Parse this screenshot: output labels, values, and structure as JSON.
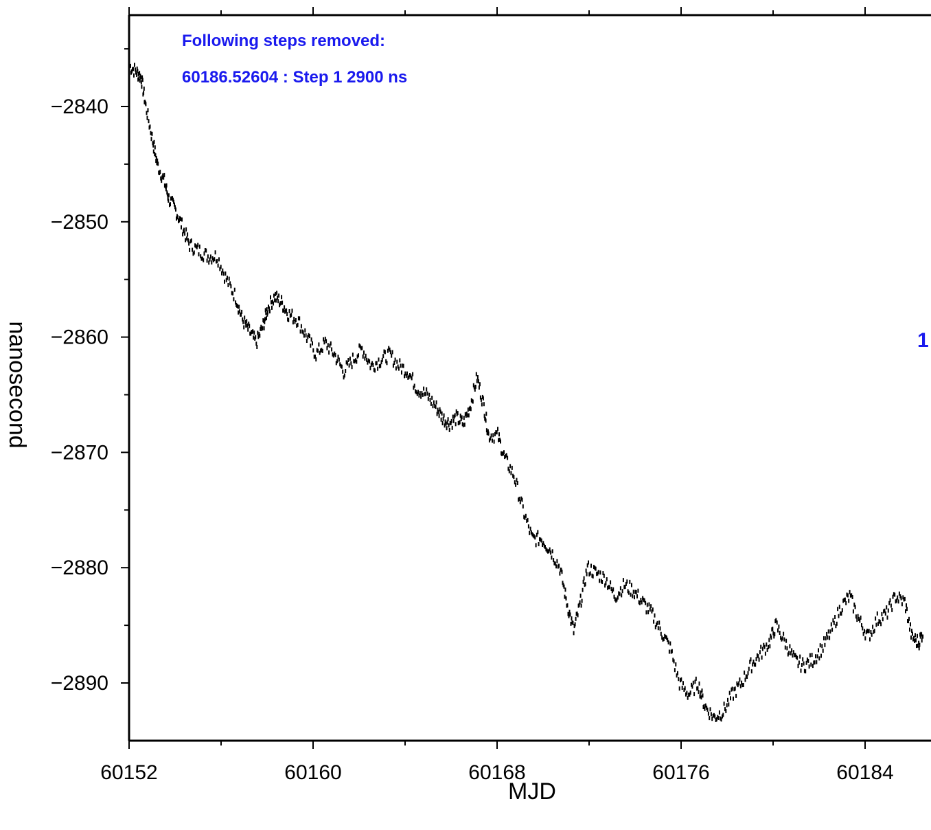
{
  "chart_data": {
    "type": "scatter",
    "xlabel": "MJD",
    "ylabel": "nanosecond",
    "xlim": [
      60152,
      60187
    ],
    "ylim": [
      -2895,
      -2832
    ],
    "x_ticks": [
      {
        "value": 60152,
        "label": "60152"
      },
      {
        "value": 60160,
        "label": "60160"
      },
      {
        "value": 60168,
        "label": "60168"
      },
      {
        "value": 60176,
        "label": "60176"
      },
      {
        "value": 60184,
        "label": "60184"
      }
    ],
    "x_minor_ticks": [
      60156,
      60164,
      60172,
      60180
    ],
    "y_ticks": [
      {
        "value": -2840,
        "label": "−2840"
      },
      {
        "value": -2850,
        "label": "−2850"
      },
      {
        "value": -2860,
        "label": "−2860"
      },
      {
        "value": -2870,
        "label": "−2870"
      },
      {
        "value": -2880,
        "label": "−2880"
      },
      {
        "value": -2890,
        "label": "−2890"
      }
    ],
    "y_minor_ticks": [
      -2835,
      -2845,
      -2855,
      -2865,
      -2875,
      -2885,
      -2895
    ],
    "annotations": [
      "Following steps removed:",
      "60186.52604 : Step 1 2900 ns"
    ],
    "side_label": "1",
    "marker_color": "#000000",
    "annotation_color": "#1a1aee",
    "series": [
      {
        "points": [
          [
            60152.0,
            -2836.5
          ],
          [
            60152.3,
            -2837.0
          ],
          [
            60152.5,
            -2837.5
          ],
          [
            60152.7,
            -2840.0
          ],
          [
            60153.0,
            -2843.0
          ],
          [
            60153.2,
            -2845.0
          ],
          [
            60153.5,
            -2846.5
          ],
          [
            60153.7,
            -2848.0
          ],
          [
            60154.0,
            -2849.0
          ],
          [
            60154.3,
            -2850.5
          ],
          [
            60154.6,
            -2852.0
          ],
          [
            60155.0,
            -2852.5
          ],
          [
            60155.4,
            -2853.0
          ],
          [
            60155.8,
            -2853.0
          ],
          [
            60156.2,
            -2855.0
          ],
          [
            60156.6,
            -2856.5
          ],
          [
            60156.9,
            -2858.5
          ],
          [
            60157.2,
            -2859.5
          ],
          [
            60157.5,
            -2860.5
          ],
          [
            60157.8,
            -2859.0
          ],
          [
            60158.0,
            -2857.5
          ],
          [
            60158.3,
            -2856.5
          ],
          [
            60158.6,
            -2857.0
          ],
          [
            60158.9,
            -2858.0
          ],
          [
            60159.3,
            -2858.5
          ],
          [
            60159.7,
            -2860.0
          ],
          [
            60160.1,
            -2861.5
          ],
          [
            60160.5,
            -2860.5
          ],
          [
            60160.9,
            -2861.5
          ],
          [
            60161.3,
            -2863.0
          ],
          [
            60161.7,
            -2862.0
          ],
          [
            60162.1,
            -2861.0
          ],
          [
            60162.5,
            -2862.5
          ],
          [
            60162.9,
            -2862.0
          ],
          [
            60163.3,
            -2861.5
          ],
          [
            60163.7,
            -2862.5
          ],
          [
            60164.1,
            -2863.0
          ],
          [
            60164.5,
            -2864.5
          ],
          [
            60164.9,
            -2865.0
          ],
          [
            60165.3,
            -2866.0
          ],
          [
            60165.6,
            -2867.0
          ],
          [
            60165.9,
            -2867.5
          ],
          [
            60166.2,
            -2867.0
          ],
          [
            60166.5,
            -2867.5
          ],
          [
            60166.8,
            -2866.0
          ],
          [
            60167.1,
            -2863.5
          ],
          [
            60167.4,
            -2866.0
          ],
          [
            60167.6,
            -2868.5
          ],
          [
            60168.0,
            -2868.5
          ],
          [
            60168.3,
            -2870.5
          ],
          [
            60168.7,
            -2872.0
          ],
          [
            60169.1,
            -2875.0
          ],
          [
            60169.5,
            -2877.5
          ],
          [
            60169.9,
            -2877.5
          ],
          [
            60170.3,
            -2878.5
          ],
          [
            60170.7,
            -2880.0
          ],
          [
            60171.0,
            -2883.0
          ],
          [
            60171.3,
            -2885.5
          ],
          [
            60171.6,
            -2883.0
          ],
          [
            60171.9,
            -2880.0
          ],
          [
            60172.3,
            -2880.5
          ],
          [
            60172.7,
            -2881.0
          ],
          [
            60173.1,
            -2882.5
          ],
          [
            60173.5,
            -2881.5
          ],
          [
            60173.9,
            -2882.0
          ],
          [
            60174.3,
            -2883.0
          ],
          [
            60174.7,
            -2884.0
          ],
          [
            60175.1,
            -2885.5
          ],
          [
            60175.5,
            -2887.0
          ],
          [
            60175.9,
            -2890.0
          ],
          [
            60176.3,
            -2891.0
          ],
          [
            60176.7,
            -2890.0
          ],
          [
            60177.0,
            -2892.0
          ],
          [
            60177.4,
            -2893.0
          ],
          [
            60177.8,
            -2892.5
          ],
          [
            60178.2,
            -2891.0
          ],
          [
            60178.6,
            -2890.0
          ],
          [
            60179.0,
            -2888.5
          ],
          [
            60179.4,
            -2887.5
          ],
          [
            60179.8,
            -2886.5
          ],
          [
            60180.1,
            -2885.0
          ],
          [
            60180.5,
            -2886.5
          ],
          [
            60180.9,
            -2888.0
          ],
          [
            60181.3,
            -2888.5
          ],
          [
            60181.7,
            -2888.0
          ],
          [
            60182.1,
            -2887.0
          ],
          [
            60182.5,
            -2885.5
          ],
          [
            60182.9,
            -2883.5
          ],
          [
            60183.3,
            -2882.5
          ],
          [
            60183.7,
            -2884.5
          ],
          [
            60184.1,
            -2886.0
          ],
          [
            60184.5,
            -2884.5
          ],
          [
            60184.9,
            -2884.0
          ],
          [
            60185.3,
            -2882.5
          ],
          [
            60185.7,
            -2883.0
          ],
          [
            60186.0,
            -2886.0
          ],
          [
            60186.3,
            -2886.5
          ],
          [
            60186.5,
            -2885.5
          ]
        ]
      }
    ]
  }
}
